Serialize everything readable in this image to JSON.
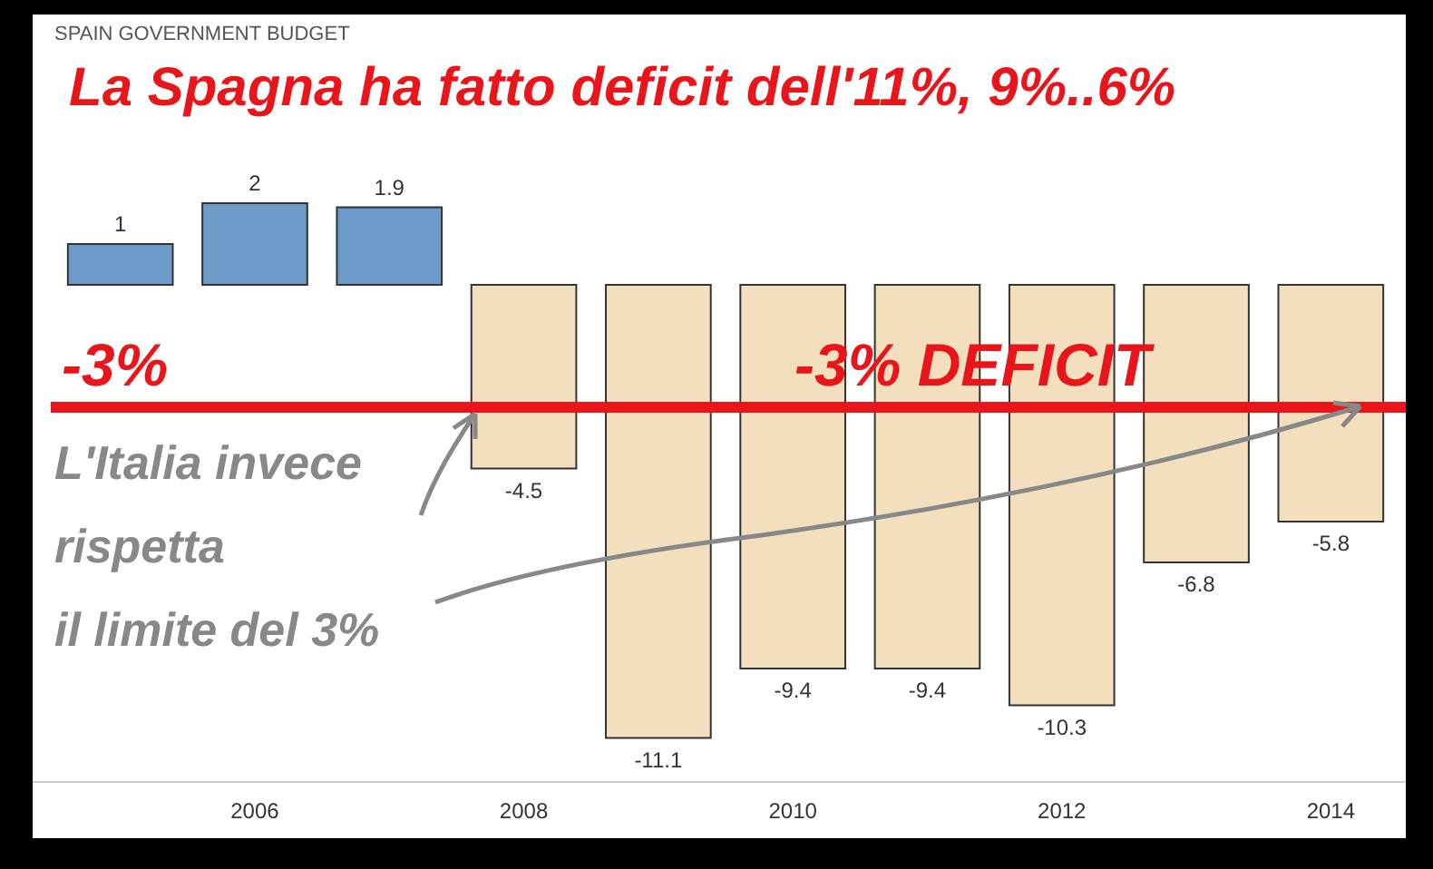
{
  "chart_data": {
    "type": "bar",
    "title": "SPAIN GOVERNMENT BUDGET",
    "subtitle": "La Spagna ha fatto deficit dell'11%, 9%..6%",
    "categories": [
      null,
      "2006",
      null,
      "2008",
      null,
      "2010",
      null,
      "2012",
      null,
      "2014"
    ],
    "values": [
      1,
      2,
      1.9,
      -4.5,
      -11.1,
      -9.4,
      -9.4,
      -10.3,
      -6.8,
      -5.8
    ],
    "colors": [
      "#6b9bc9",
      "#6b9bc9",
      "#6b9bc9",
      "#f3dfbd",
      "#f3dfbd",
      "#f3dfbd",
      "#f3dfbd",
      "#f3dfbd",
      "#f3dfbd",
      "#f3dfbd"
    ],
    "data_labels": true,
    "tick_labels": "x",
    "ref_lines": [
      {
        "axis": "y",
        "value": -3,
        "label": "-3% DEFICIT",
        "color": "#e8161b"
      }
    ],
    "annotations": [
      "-3%",
      "L'Italia invece\nrispetta\nil limite del 3%"
    ]
  }
}
